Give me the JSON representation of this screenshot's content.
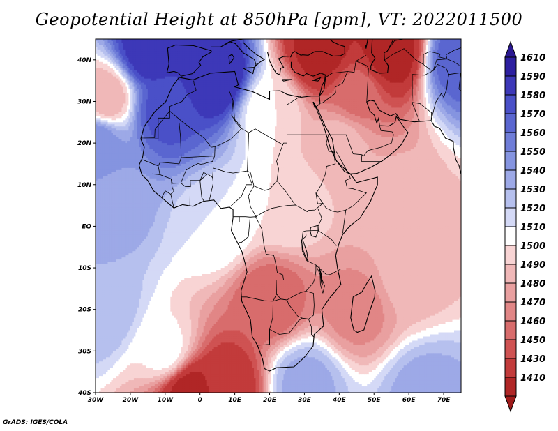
{
  "title": "Geopotential Height at 850hPa [gpm], VT: 2022011500",
  "credit": "GrADS: IGES/COLA",
  "map": {
    "lon_range": [
      -30,
      75
    ],
    "lat_range": [
      -40,
      45
    ],
    "lon_ticks": [
      {
        "value": -30,
        "label": "30W"
      },
      {
        "value": -20,
        "label": "20W"
      },
      {
        "value": -10,
        "label": "10W"
      },
      {
        "value": 0,
        "label": "0"
      },
      {
        "value": 10,
        "label": "10E"
      },
      {
        "value": 20,
        "label": "20E"
      },
      {
        "value": 30,
        "label": "30E"
      },
      {
        "value": 40,
        "label": "40E"
      },
      {
        "value": 50,
        "label": "50E"
      },
      {
        "value": 60,
        "label": "60E"
      },
      {
        "value": 70,
        "label": "70E"
      }
    ],
    "lat_ticks": [
      {
        "value": 40,
        "label": "40N"
      },
      {
        "value": 30,
        "label": "30N"
      },
      {
        "value": 20,
        "label": "20N"
      },
      {
        "value": 10,
        "label": "10N"
      },
      {
        "value": 0,
        "label": "EQ"
      },
      {
        "value": -10,
        "label": "10S"
      },
      {
        "value": -20,
        "label": "20S"
      },
      {
        "value": -30,
        "label": "30S"
      },
      {
        "value": -40,
        "label": "40S"
      }
    ],
    "field_centers": [
      {
        "lon": -15,
        "lat": 42,
        "value": 1600
      },
      {
        "lon": 5,
        "lat": 36,
        "value": 1610
      },
      {
        "lon": -10,
        "lat": 28,
        "value": 1585
      },
      {
        "lon": -30,
        "lat": 20,
        "value": 1560
      },
      {
        "lon": -25,
        "lat": 5,
        "value": 1545
      },
      {
        "lon": -28,
        "lat": -20,
        "value": 1540
      },
      {
        "lon": -10,
        "lat": -30,
        "value": 1515
      },
      {
        "lon": -3,
        "lat": -40,
        "value": 1420
      },
      {
        "lon": 8,
        "lat": -38,
        "value": 1440
      },
      {
        "lon": -27,
        "lat": 31,
        "value": 1490
      },
      {
        "lon": 20,
        "lat": -18,
        "value": 1460
      },
      {
        "lon": 45,
        "lat": -20,
        "value": 1475
      },
      {
        "lon": 60,
        "lat": -12,
        "value": 1495
      },
      {
        "lon": 55,
        "lat": 5,
        "value": 1495
      },
      {
        "lon": 40,
        "lat": 20,
        "value": 1495
      },
      {
        "lon": 25,
        "lat": 5,
        "value": 1510
      },
      {
        "lon": 5,
        "lat": 0,
        "value": 1520
      },
      {
        "lon": 20,
        "lat": 28,
        "value": 1510
      },
      {
        "lon": 35,
        "lat": 42,
        "value": 1420
      },
      {
        "lon": 55,
        "lat": 42,
        "value": 1415
      },
      {
        "lon": 45,
        "lat": 32,
        "value": 1465
      },
      {
        "lon": 30,
        "lat": -38,
        "value": 1545
      },
      {
        "lon": 65,
        "lat": -40,
        "value": 1545
      },
      {
        "lon": 74,
        "lat": 40,
        "value": 1580
      }
    ]
  },
  "colorbar": {
    "levels": [
      {
        "value": "1610",
        "color": "#2d1fa0"
      },
      {
        "value": "1590",
        "color": "#3d38b8"
      },
      {
        "value": "1580",
        "color": "#4a50c8"
      },
      {
        "value": "1570",
        "color": "#5a66d0"
      },
      {
        "value": "1560",
        "color": "#6f7dd8"
      },
      {
        "value": "1550",
        "color": "#8594e0"
      },
      {
        "value": "1540",
        "color": "#9da9e7"
      },
      {
        "value": "1530",
        "color": "#b6c0ee"
      },
      {
        "value": "1520",
        "color": "#d4d9f6"
      },
      {
        "value": "1510",
        "color": "#ffffff"
      },
      {
        "value": "1500",
        "color": "#f8d4d4"
      },
      {
        "value": "1490",
        "color": "#f0b8b8"
      },
      {
        "value": "1480",
        "color": "#e9a0a0"
      },
      {
        "value": "1470",
        "color": "#e18686"
      },
      {
        "value": "1460",
        "color": "#d86c6c"
      },
      {
        "value": "1450",
        "color": "#cf5252"
      },
      {
        "value": "1430",
        "color": "#c23b3b"
      },
      {
        "value": "1410",
        "color": "#b02626"
      }
    ],
    "top_color": "#2a1890",
    "bottom_color": "#9e1a1a"
  }
}
